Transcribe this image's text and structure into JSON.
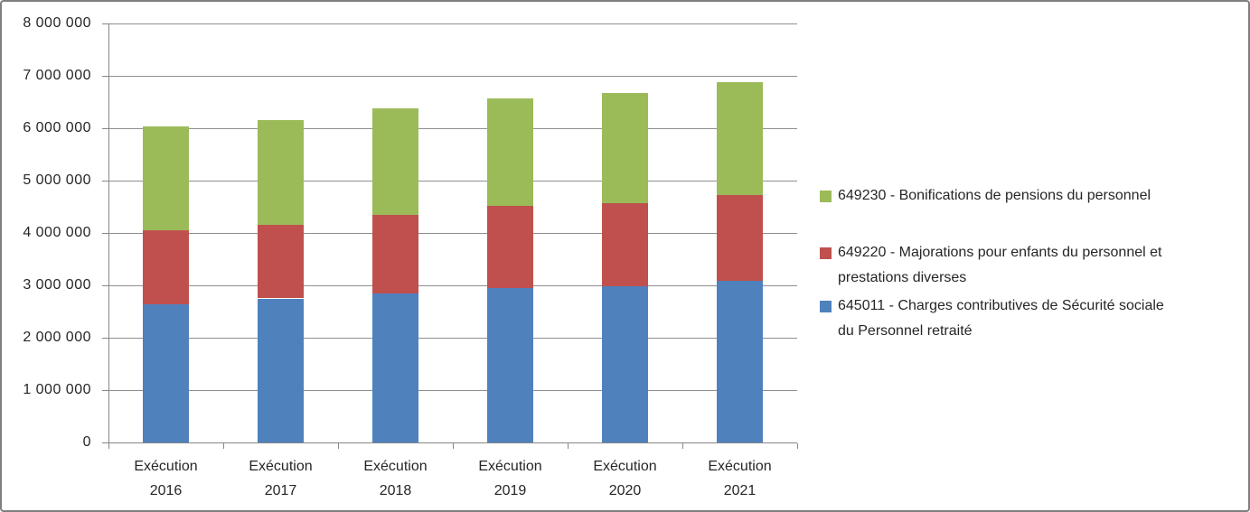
{
  "figure": {
    "border_color": "#7F7F7F",
    "background_color": "#FFFFFF",
    "grid_color": "#8F8F8F",
    "axis_color": "#868686",
    "text_color": "#262626"
  },
  "chart_data": {
    "type": "bar",
    "stacked": true,
    "title": "",
    "xlabel": "",
    "ylabel": "",
    "grid": true,
    "legend_position": "right",
    "categories": [
      "Exécution 2016",
      "Exécution 2017",
      "Exécution 2018",
      "Exécution 2019",
      "Exécution 2020",
      "Exécution 2021"
    ],
    "series": [
      {
        "id": "645011",
        "name": "645011 - Charges contributives de Sécurité sociale du Personnel retraité",
        "color": "#4F81BD",
        "values": [
          2640000,
          2750000,
          2850000,
          2940000,
          2980000,
          3080000
        ]
      },
      {
        "id": "649220",
        "name": "649220 - Majorations pour enfants du personnel et prestations diverses",
        "color": "#C0504D",
        "values": [
          1420000,
          1410000,
          1500000,
          1570000,
          1590000,
          1640000
        ]
      },
      {
        "id": "649230",
        "name": "649230 - Bonifications de pensions du personnel",
        "color": "#9BBB59",
        "values": [
          1980000,
          1990000,
          2030000,
          2060000,
          2100000,
          2160000
        ]
      }
    ],
    "totals": [
      6040000,
      6150000,
      6380000,
      6570000,
      6670000,
      6880000
    ],
    "ylim": [
      0,
      8000000
    ],
    "ytick_step": 1000000,
    "ytick_labels": [
      "0",
      "1 000 000",
      "2 000 000",
      "3 000 000",
      "4 000 000",
      "5 000 000",
      "6 000 000",
      "7 000 000",
      "8 000 000"
    ]
  },
  "legend": {
    "items": [
      {
        "series_id": "649230",
        "color": "#9BBB59",
        "lines": [
          "649230 - Bonifications de pensions du personnel"
        ]
      },
      {
        "series_id": "649220",
        "color": "#C0504D",
        "lines": [
          "649220 - Majorations pour enfants du personnel et",
          "prestations diverses"
        ]
      },
      {
        "series_id": "645011",
        "color": "#4F81BD",
        "lines": [
          "645011 - Charges contributives de Sécurité sociale",
          "du Personnel retraité"
        ]
      }
    ]
  }
}
